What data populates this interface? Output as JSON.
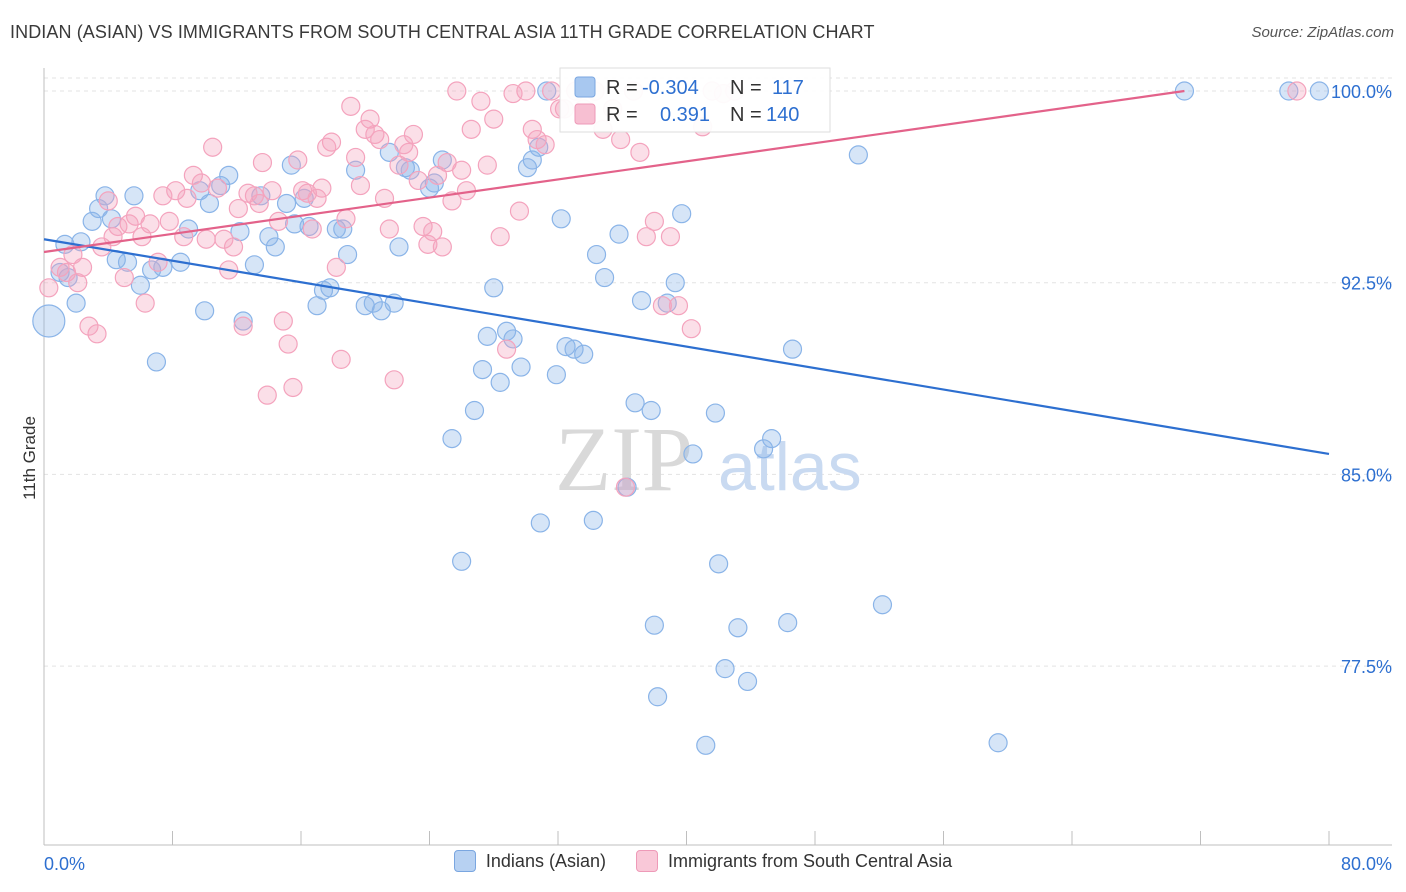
{
  "title": "INDIAN (ASIAN) VS IMMIGRANTS FROM SOUTH CENTRAL ASIA 11TH GRADE CORRELATION CHART",
  "source": "Source: ZipAtlas.com",
  "watermark": {
    "zip": "ZIP",
    "atlas": "atlas"
  },
  "chart_data": {
    "type": "scatter",
    "ylabel": "11th Grade",
    "xlabel": "",
    "xlim": [
      0,
      80
    ],
    "ylim": [
      70.5,
      100.9
    ],
    "x_tick_labels": [
      "0.0%",
      "80.0%"
    ],
    "y_ticks": [
      77.5,
      85.0,
      92.5,
      100.0
    ],
    "y_tick_labels": [
      "77.5%",
      "85.0%",
      "92.5%",
      "100.0%"
    ],
    "grid": true,
    "legend_position": "bottom-center",
    "stats": [
      {
        "r_label": "R =",
        "r": "-0.304",
        "n_label": "N =",
        "n": "117"
      },
      {
        "r_label": "R =",
        "r": "0.391",
        "n_label": "N =",
        "n": "140"
      }
    ],
    "series": [
      {
        "name": "Indians (Asian)",
        "color": "#8ab4e8",
        "line_color": "#2d6fd0",
        "trend": {
          "x": [
            0,
            80
          ],
          "y": [
            94.2,
            85.8
          ]
        },
        "points": [
          [
            0.3,
            91.0
          ],
          [
            1.0,
            92.9
          ],
          [
            1.5,
            92.7
          ],
          [
            2.0,
            91.7
          ],
          [
            1.3,
            94.0
          ],
          [
            2.3,
            94.1
          ],
          [
            3.0,
            94.9
          ],
          [
            3.4,
            95.4
          ],
          [
            3.8,
            95.9
          ],
          [
            4.2,
            95.0
          ],
          [
            4.5,
            93.4
          ],
          [
            5.2,
            93.3
          ],
          [
            5.6,
            95.9
          ],
          [
            6.0,
            92.4
          ],
          [
            6.7,
            93.0
          ],
          [
            7.4,
            93.1
          ],
          [
            7.0,
            89.4
          ],
          [
            8.5,
            93.3
          ],
          [
            9.0,
            94.6
          ],
          [
            9.7,
            96.1
          ],
          [
            10.0,
            91.4
          ],
          [
            10.3,
            95.6
          ],
          [
            11.0,
            96.3
          ],
          [
            11.5,
            96.7
          ],
          [
            12.2,
            94.5
          ],
          [
            12.4,
            91.0
          ],
          [
            13.1,
            93.2
          ],
          [
            13.5,
            95.9
          ],
          [
            14.0,
            94.3
          ],
          [
            14.4,
            93.9
          ],
          [
            15.1,
            95.6
          ],
          [
            15.6,
            94.8
          ],
          [
            15.4,
            97.1
          ],
          [
            16.2,
            95.8
          ],
          [
            16.5,
            94.7
          ],
          [
            17.0,
            91.6
          ],
          [
            17.4,
            92.2
          ],
          [
            17.8,
            92.3
          ],
          [
            18.2,
            94.6
          ],
          [
            18.6,
            94.6
          ],
          [
            18.9,
            93.6
          ],
          [
            19.4,
            96.9
          ],
          [
            20.0,
            91.6
          ],
          [
            20.5,
            91.7
          ],
          [
            21.0,
            91.4
          ],
          [
            21.5,
            97.6
          ],
          [
            21.8,
            91.7
          ],
          [
            22.1,
            93.9
          ],
          [
            22.5,
            97.0
          ],
          [
            22.8,
            96.9
          ],
          [
            24.0,
            96.2
          ],
          [
            24.3,
            96.4
          ],
          [
            24.8,
            97.3
          ],
          [
            25.4,
            86.4
          ],
          [
            26.0,
            81.6
          ],
          [
            26.8,
            87.5
          ],
          [
            27.3,
            89.1
          ],
          [
            27.6,
            90.4
          ],
          [
            28.0,
            92.3
          ],
          [
            28.4,
            88.6
          ],
          [
            28.8,
            90.6
          ],
          [
            29.2,
            90.3
          ],
          [
            29.7,
            89.2
          ],
          [
            30.1,
            97.0
          ],
          [
            30.4,
            97.3
          ],
          [
            30.8,
            97.8
          ],
          [
            30.9,
            83.1
          ],
          [
            31.3,
            100.0
          ],
          [
            31.9,
            88.9
          ],
          [
            32.2,
            95.0
          ],
          [
            32.5,
            90.0
          ],
          [
            33.0,
            89.9
          ],
          [
            33.6,
            89.7
          ],
          [
            34.2,
            83.2
          ],
          [
            34.4,
            93.6
          ],
          [
            34.9,
            92.7
          ],
          [
            35.8,
            94.4
          ],
          [
            36.3,
            84.5
          ],
          [
            36.8,
            87.8
          ],
          [
            37.2,
            91.8
          ],
          [
            37.8,
            87.5
          ],
          [
            38.0,
            79.1
          ],
          [
            38.2,
            76.3
          ],
          [
            38.8,
            91.7
          ],
          [
            39.3,
            92.5
          ],
          [
            39.7,
            95.2
          ],
          [
            40.4,
            85.8
          ],
          [
            41.2,
            74.4
          ],
          [
            41.8,
            87.4
          ],
          [
            42.0,
            81.5
          ],
          [
            42.4,
            77.4
          ],
          [
            43.2,
            79.0
          ],
          [
            43.8,
            76.9
          ],
          [
            44.8,
            86.0
          ],
          [
            45.3,
            86.4
          ],
          [
            46.3,
            79.2
          ],
          [
            46.6,
            89.9
          ],
          [
            50.7,
            97.5
          ],
          [
            52.2,
            79.9
          ],
          [
            59.4,
            74.5
          ],
          [
            71.0,
            100.0
          ],
          [
            77.5,
            100.0
          ],
          [
            79.4,
            100.0
          ]
        ]
      },
      {
        "name": "Immigrants from South Central Asia",
        "color": "#f4a3bd",
        "line_color": "#e3628a",
        "trend": {
          "x": [
            0,
            71.0
          ],
          "y": [
            93.7,
            100.0
          ]
        },
        "points": [
          [
            0.3,
            92.3
          ],
          [
            1.0,
            93.1
          ],
          [
            1.4,
            92.9
          ],
          [
            1.8,
            93.6
          ],
          [
            2.1,
            92.5
          ],
          [
            2.4,
            93.1
          ],
          [
            2.8,
            90.8
          ],
          [
            3.3,
            90.5
          ],
          [
            3.6,
            93.9
          ],
          [
            4.0,
            95.7
          ],
          [
            4.3,
            94.3
          ],
          [
            4.6,
            94.7
          ],
          [
            5.0,
            92.7
          ],
          [
            5.3,
            94.8
          ],
          [
            5.7,
            95.1
          ],
          [
            6.1,
            94.3
          ],
          [
            6.3,
            91.7
          ],
          [
            6.6,
            94.8
          ],
          [
            7.1,
            93.3
          ],
          [
            7.4,
            95.9
          ],
          [
            7.8,
            94.9
          ],
          [
            8.2,
            96.1
          ],
          [
            8.7,
            94.3
          ],
          [
            8.9,
            95.8
          ],
          [
            9.3,
            96.7
          ],
          [
            9.8,
            96.4
          ],
          [
            10.1,
            94.2
          ],
          [
            10.5,
            97.8
          ],
          [
            10.8,
            96.2
          ],
          [
            11.2,
            94.2
          ],
          [
            11.5,
            93.0
          ],
          [
            11.8,
            93.9
          ],
          [
            12.1,
            95.4
          ],
          [
            12.4,
            90.8
          ],
          [
            12.7,
            96.0
          ],
          [
            13.1,
            95.9
          ],
          [
            13.4,
            95.6
          ],
          [
            13.6,
            97.2
          ],
          [
            13.9,
            88.1
          ],
          [
            14.2,
            96.1
          ],
          [
            14.6,
            94.9
          ],
          [
            14.9,
            91.0
          ],
          [
            15.2,
            90.1
          ],
          [
            15.5,
            88.4
          ],
          [
            15.8,
            97.3
          ],
          [
            16.1,
            96.1
          ],
          [
            16.4,
            96.0
          ],
          [
            16.7,
            94.6
          ],
          [
            17.0,
            95.8
          ],
          [
            17.3,
            96.2
          ],
          [
            17.6,
            97.8
          ],
          [
            17.9,
            98.0
          ],
          [
            18.2,
            93.1
          ],
          [
            18.5,
            89.5
          ],
          [
            18.8,
            95.0
          ],
          [
            19.1,
            99.4
          ],
          [
            19.4,
            97.4
          ],
          [
            19.7,
            96.3
          ],
          [
            20.0,
            98.5
          ],
          [
            20.3,
            98.9
          ],
          [
            20.6,
            98.3
          ],
          [
            20.9,
            98.1
          ],
          [
            21.2,
            95.8
          ],
          [
            21.5,
            94.6
          ],
          [
            21.8,
            88.7
          ],
          [
            22.1,
            97.1
          ],
          [
            22.4,
            97.9
          ],
          [
            22.7,
            97.6
          ],
          [
            23.0,
            98.3
          ],
          [
            23.3,
            96.5
          ],
          [
            23.6,
            94.7
          ],
          [
            23.9,
            94.0
          ],
          [
            24.2,
            94.5
          ],
          [
            24.5,
            96.7
          ],
          [
            24.8,
            93.9
          ],
          [
            25.1,
            97.2
          ],
          [
            25.4,
            95.7
          ],
          [
            25.7,
            100.0
          ],
          [
            26.0,
            96.9
          ],
          [
            26.3,
            96.1
          ],
          [
            26.6,
            98.5
          ],
          [
            27.2,
            99.6
          ],
          [
            27.6,
            97.1
          ],
          [
            28.0,
            98.9
          ],
          [
            28.4,
            94.3
          ],
          [
            28.8,
            89.9
          ],
          [
            29.2,
            99.9
          ],
          [
            29.6,
            95.3
          ],
          [
            30.0,
            100.0
          ],
          [
            30.4,
            98.5
          ],
          [
            30.7,
            98.1
          ],
          [
            31.2,
            97.9
          ],
          [
            31.6,
            100.0
          ],
          [
            32.1,
            99.3
          ],
          [
            32.4,
            99.3
          ],
          [
            33.1,
            100.0
          ],
          [
            33.6,
            99.3
          ],
          [
            34.3,
            100.0
          ],
          [
            34.8,
            98.5
          ],
          [
            35.4,
            99.3
          ],
          [
            35.9,
            98.1
          ],
          [
            36.2,
            84.5
          ],
          [
            36.7,
            100.0
          ],
          [
            37.1,
            97.6
          ],
          [
            37.5,
            94.3
          ],
          [
            38.0,
            94.9
          ],
          [
            38.5,
            91.6
          ],
          [
            39.0,
            94.3
          ],
          [
            39.5,
            91.6
          ],
          [
            40.3,
            90.7
          ],
          [
            41.0,
            98.6
          ],
          [
            41.6,
            100.0
          ],
          [
            42.3,
            99.9
          ],
          [
            43.0,
            100.0
          ],
          [
            78.0,
            100.0
          ]
        ]
      }
    ]
  }
}
